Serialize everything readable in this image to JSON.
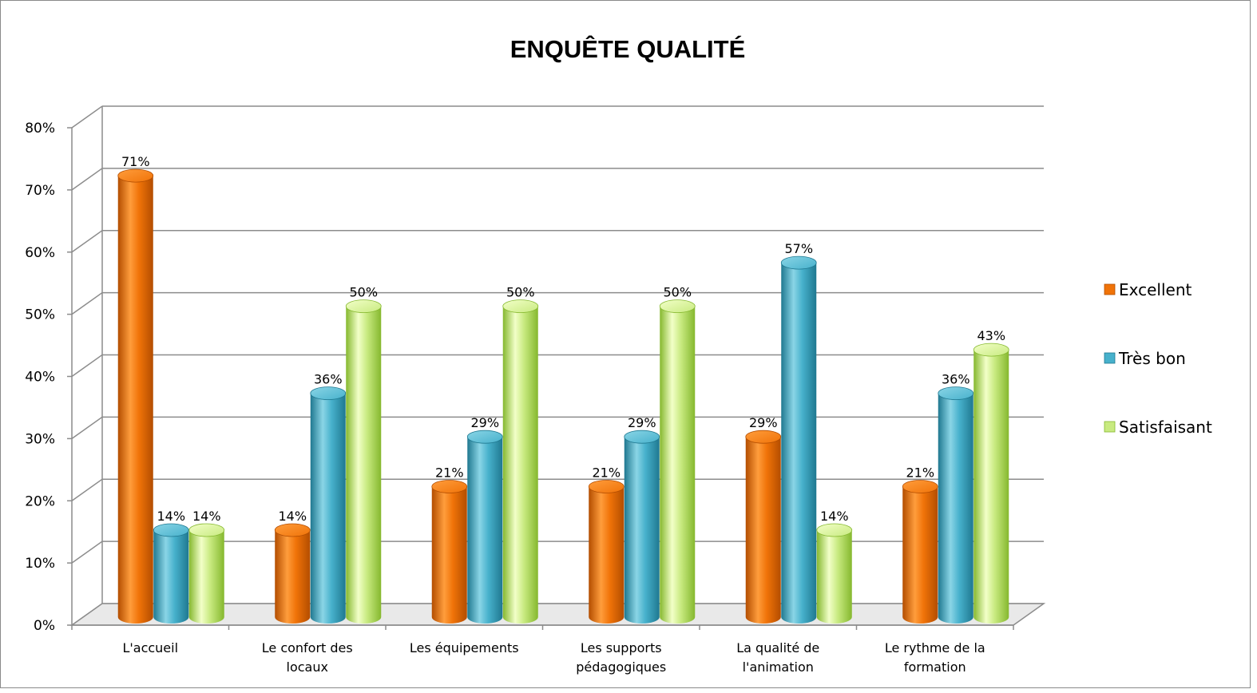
{
  "chart_data": {
    "type": "bar",
    "title": "ENQUÊTE QUALITÉ",
    "categories": [
      [
        "L'accueil"
      ],
      [
        "Le confort des",
        "locaux"
      ],
      [
        "Les équipements"
      ],
      [
        "Les supports",
        "pédagogiques"
      ],
      [
        "La qualité de",
        "l'animation"
      ],
      [
        "Le rythme de la",
        "formation"
      ]
    ],
    "series": [
      {
        "name": "Excellent",
        "values": [
          71,
          14,
          21,
          21,
          29,
          21
        ],
        "labels": [
          "71%",
          "14%",
          "21%",
          "21%",
          "29%",
          "21%"
        ],
        "color": "#f07308",
        "dark": "#b34d00",
        "light": "#ff9d3c"
      },
      {
        "name": "Très bon",
        "values": [
          14,
          36,
          29,
          29,
          57,
          36
        ],
        "labels": [
          "14%",
          "36%",
          "29%",
          "29%",
          "57%",
          "36%"
        ],
        "color": "#47b1cc",
        "dark": "#1f7890",
        "light": "#8ad5e6"
      },
      {
        "name": "Satisfaisant",
        "values": [
          14,
          50,
          50,
          50,
          14,
          43
        ],
        "labels": [
          "14%",
          "50%",
          "50%",
          "50%",
          "14%",
          "43%"
        ],
        "color": "#c8ea80",
        "dark": "#85b82e",
        "light": "#f2ffc8"
      }
    ],
    "ylim": [
      0,
      80
    ],
    "yticks": [
      "0%",
      "10%",
      "20%",
      "30%",
      "40%",
      "50%",
      "60%",
      "70%",
      "80%"
    ],
    "grid": true,
    "legend_position": "right"
  }
}
